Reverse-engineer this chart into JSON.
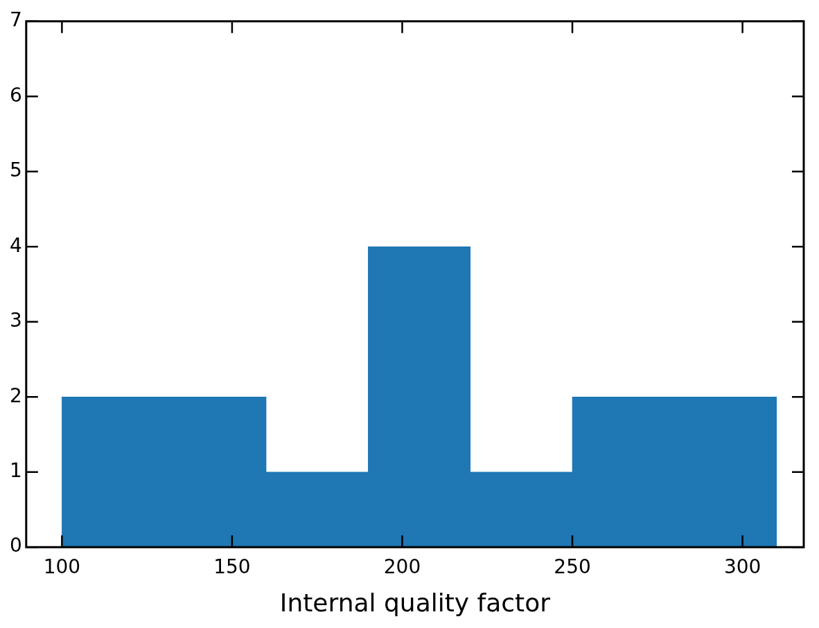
{
  "chart_data": {
    "type": "histogram",
    "xlabel": "Internal quality factor",
    "bins": [
      100,
      130,
      160,
      190,
      220,
      250,
      280,
      310
    ],
    "values": [
      2,
      2,
      1,
      4,
      1,
      2,
      2
    ],
    "color": "#1f77b4",
    "xlim": [
      89.5,
      318
    ],
    "xticks": [
      100,
      150,
      200,
      250,
      300
    ],
    "ylim": [
      0,
      7
    ],
    "yticks": [
      0,
      1,
      2,
      3,
      4,
      5,
      6,
      7
    ],
    "grid": false,
    "legend": false
  }
}
